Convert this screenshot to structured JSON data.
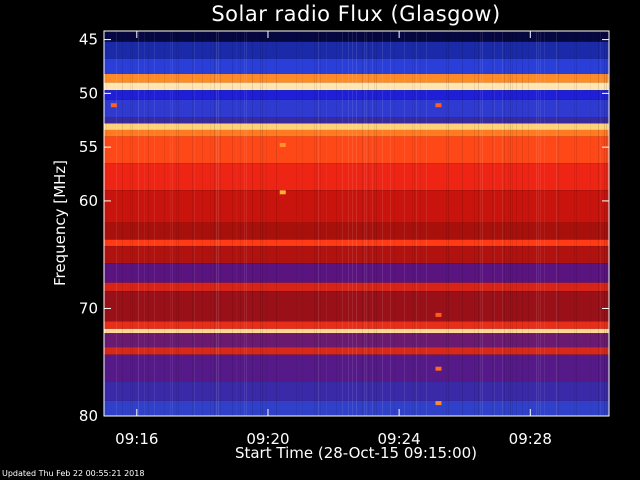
{
  "chart_data": {
    "type": "heatmap",
    "title": "Solar radio Flux (Glasgow)",
    "ylabel": "Frequency [MHz]",
    "xlabel": "Start Time (28-Oct-15 09:15:00)",
    "x_unit": "minutes after 09:15:00",
    "xlim": [
      0,
      15.4
    ],
    "ylim": [
      80,
      44.2
    ],
    "y_reversed": true,
    "x_ticks": [
      {
        "value": 1,
        "label": "09:16"
      },
      {
        "value": 5,
        "label": "09:20"
      },
      {
        "value": 9,
        "label": "09:24"
      },
      {
        "value": 13,
        "label": "09:28"
      }
    ],
    "y_ticks": [
      {
        "value": 45,
        "label": "45"
      },
      {
        "value": 50,
        "label": "50"
      },
      {
        "value": 55,
        "label": "55"
      },
      {
        "value": 60,
        "label": "60"
      },
      {
        "value": 70,
        "label": "70"
      },
      {
        "value": 80,
        "label": "80"
      }
    ],
    "bands": [
      {
        "from": 44.2,
        "to": 45.2,
        "color": "#060640"
      },
      {
        "from": 45.2,
        "to": 46.8,
        "color": "#1a2aa8"
      },
      {
        "from": 46.8,
        "to": 48.2,
        "color": "#2a3ed8"
      },
      {
        "from": 48.2,
        "to": 49.0,
        "color": "#ff8a28"
      },
      {
        "from": 49.0,
        "to": 49.7,
        "color": "#ffe6b0"
      },
      {
        "from": 49.7,
        "to": 50.6,
        "color": "#1f1fd8"
      },
      {
        "from": 50.6,
        "to": 52.2,
        "color": "#2f3ad0"
      },
      {
        "from": 52.2,
        "to": 52.8,
        "color": "#3a2aa0"
      },
      {
        "from": 52.8,
        "to": 53.4,
        "color": "#ffd27a"
      },
      {
        "from": 53.4,
        "to": 54.0,
        "color": "#ff7a20"
      },
      {
        "from": 54.0,
        "to": 56.5,
        "color": "#ff4818"
      },
      {
        "from": 56.5,
        "to": 59.0,
        "color": "#ee2414"
      },
      {
        "from": 59.0,
        "to": 62.0,
        "color": "#c8140c"
      },
      {
        "from": 62.0,
        "to": 63.6,
        "color": "#a8100c"
      },
      {
        "from": 63.6,
        "to": 64.2,
        "color": "#ff3a14"
      },
      {
        "from": 64.2,
        "to": 65.8,
        "color": "#b01210"
      },
      {
        "from": 65.8,
        "to": 67.6,
        "color": "#5a1480"
      },
      {
        "from": 67.6,
        "to": 68.4,
        "color": "#d82418"
      },
      {
        "from": 68.4,
        "to": 71.2,
        "color": "#9a1018"
      },
      {
        "from": 71.2,
        "to": 71.9,
        "color": "#e82e18"
      },
      {
        "from": 71.9,
        "to": 72.3,
        "color": "#ffd896"
      },
      {
        "from": 72.3,
        "to": 73.6,
        "color": "#6a1a70"
      },
      {
        "from": 73.6,
        "to": 74.3,
        "color": "#d8281a"
      },
      {
        "from": 74.3,
        "to": 76.8,
        "color": "#551a88"
      },
      {
        "from": 76.8,
        "to": 78.6,
        "color": "#3a2aa8"
      },
      {
        "from": 78.6,
        "to": 80.0,
        "color": "#3040c8"
      }
    ],
    "hot_spots": [
      {
        "x": 5.45,
        "y": 59.2,
        "color": "#ffb030"
      },
      {
        "x": 5.45,
        "y": 54.8,
        "color": "#ff9030"
      },
      {
        "x": 0.3,
        "y": 51.1,
        "color": "#ff6020"
      },
      {
        "x": 10.2,
        "y": 51.1,
        "color": "#ff6020"
      },
      {
        "x": 10.2,
        "y": 75.6,
        "color": "#ff6a20"
      },
      {
        "x": 10.2,
        "y": 78.8,
        "color": "#ff8a30"
      },
      {
        "x": 10.2,
        "y": 70.6,
        "color": "#ff5a20"
      }
    ],
    "grid": false
  },
  "footer": {
    "updated": "Updated Thu Feb 22 00:55:21 2018"
  }
}
